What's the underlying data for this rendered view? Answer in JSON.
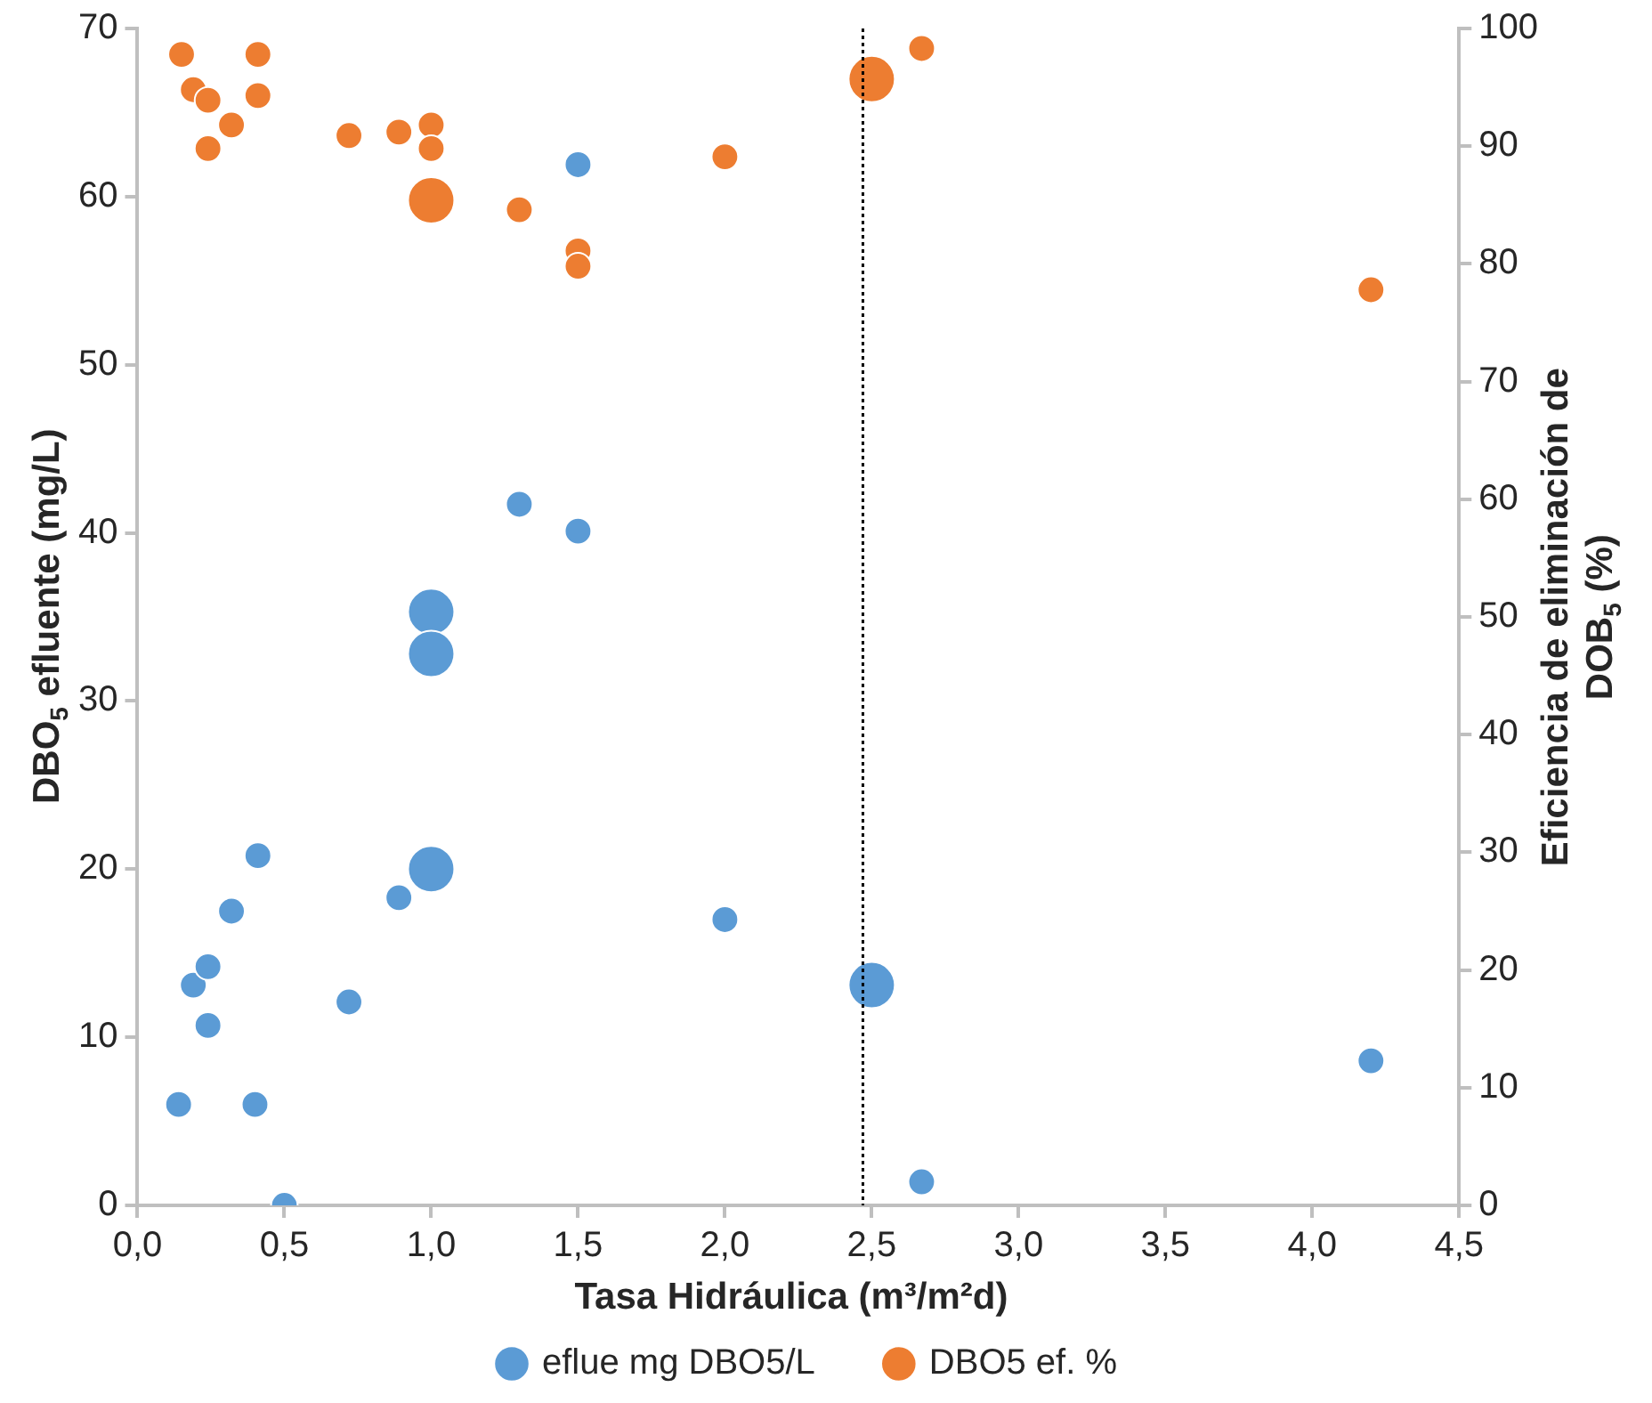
{
  "chart_data": {
    "type": "bubble",
    "xlabel": "Tasa Hidráulica (m³/m²d)",
    "ylabel": "DBO$_{5}$ efluente (mg/L)",
    "y2label": "Eficiencia de eliminación de DOB$_{5}$ (%)",
    "series": [
      {
        "name": "eflue mg DBO5/L",
        "color": "#5b9bd5",
        "axis": "y",
        "x": [
          0.14,
          0.19,
          0.24,
          0.24,
          0.32,
          0.41,
          0.4,
          0.5,
          0.72,
          0.89,
          1.0,
          1.0,
          1.0,
          1.3,
          1.5,
          1.5,
          2.0,
          2.5,
          2.67,
          4.2
        ],
        "values": [
          6,
          13.1,
          14.2,
          10.7,
          17.5,
          20.8,
          6,
          0,
          12.1,
          18.3,
          20,
          35.3,
          32.8,
          41.7,
          40.1,
          61.9,
          17,
          13.1,
          1.4,
          8.6
        ],
        "sizes": [
          0.33,
          0.33,
          0.33,
          0.33,
          0.33,
          0.33,
          0.33,
          0.33,
          0.33,
          0.33,
          1,
          1,
          1,
          0.33,
          0.33,
          0.33,
          0.33,
          1,
          0.33,
          0.33
        ]
      },
      {
        "name": "DBO5 ef. %",
        "color": "#ed7d31",
        "axis": "y2",
        "x": [
          0.15,
          0.41,
          0.19,
          0.24,
          0.41,
          0.32,
          0.24,
          0.72,
          0.89,
          1.0,
          1.0,
          1.0,
          1.3,
          1.5,
          1.5,
          2.0,
          2.5,
          2.67,
          4.2
        ],
        "values": [
          97.8,
          97.8,
          94.8,
          93.9,
          94.3,
          91.8,
          89.8,
          90.9,
          91.2,
          91.8,
          89.8,
          85.4,
          84.6,
          81.1,
          79.8,
          89.1,
          95.7,
          98.3,
          77.8
        ],
        "sizes": [
          0.33,
          0.33,
          0.33,
          0.33,
          0.33,
          0.33,
          0.33,
          0.33,
          0.33,
          0.33,
          0.33,
          1,
          0.33,
          0.33,
          0.33,
          0.33,
          1,
          0.33,
          0.33
        ]
      }
    ],
    "xlim": [
      0,
      4.5
    ],
    "xticks": [
      {
        "value": 0,
        "label": "0,0"
      },
      {
        "value": 0.5,
        "label": "0,5"
      },
      {
        "value": 1,
        "label": "1,0"
      },
      {
        "value": 1.5,
        "label": "1,5"
      },
      {
        "value": 2,
        "label": "2,0"
      },
      {
        "value": 2.5,
        "label": "2,5"
      },
      {
        "value": 3,
        "label": "3,0"
      },
      {
        "value": 3.5,
        "label": "3,5"
      },
      {
        "value": 4,
        "label": "4,0"
      },
      {
        "value": 4.5,
        "label": "4,5"
      }
    ],
    "ylim": [
      0,
      70
    ],
    "yticks": [
      0,
      10,
      20,
      30,
      40,
      50,
      60,
      70
    ],
    "y2lim": [
      0,
      100
    ],
    "y2ticks": [
      0,
      10,
      20,
      30,
      40,
      50,
      60,
      70,
      80,
      90,
      100
    ],
    "ref_lines": [
      {
        "axis": "x",
        "value": 2.47,
        "color": "#000000",
        "line_style": "dotted"
      }
    ],
    "legend": "bottom",
    "grid": false
  }
}
